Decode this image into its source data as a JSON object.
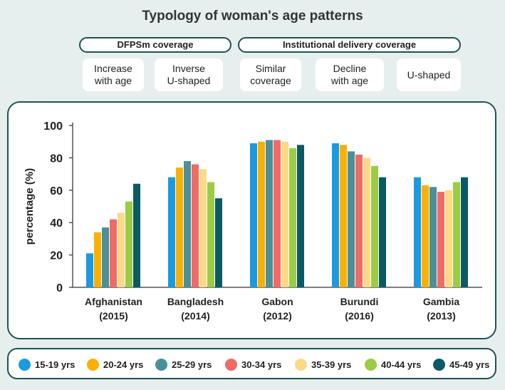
{
  "header": {
    "title": "Typology of woman's age patterns"
  },
  "groups": [
    {
      "label": "DFPSm coverage"
    },
    {
      "label": "Institutional delivery coverage"
    }
  ],
  "types": [
    {
      "label": "Increase\nwith age"
    },
    {
      "label": "Inverse\nU-shaped"
    },
    {
      "label": "Similar\ncoverage"
    },
    {
      "label": "Decline\nwith age"
    },
    {
      "label": "U-shaped"
    }
  ],
  "chart_data": {
    "type": "bar",
    "title": "",
    "xlabel": "",
    "ylabel": "percentage (%)",
    "ylim": [
      0,
      100
    ],
    "yticks": [
      0,
      20,
      40,
      60,
      80,
      100
    ],
    "grid": false,
    "legend_position": "bottom",
    "categories": [
      {
        "name": "Afghanistan",
        "year": "(2015)"
      },
      {
        "name": "Bangladesh",
        "year": "(2014)"
      },
      {
        "name": "Gabon",
        "year": "(2012)"
      },
      {
        "name": "Burundi",
        "year": "(2016)"
      },
      {
        "name": "Gambia",
        "year": "(2013)"
      }
    ],
    "series": [
      {
        "name": "15-19 yrs",
        "color": "#1b9ae0",
        "values": [
          21,
          68,
          89,
          89,
          68
        ]
      },
      {
        "name": "20-24 yrs",
        "color": "#fbb000",
        "values": [
          34,
          74,
          90,
          88,
          63
        ]
      },
      {
        "name": "25-29 yrs",
        "color": "#4a9098",
        "values": [
          37,
          78,
          91,
          84,
          62
        ]
      },
      {
        "name": "30-34 yrs",
        "color": "#f06a66",
        "values": [
          42,
          76,
          91,
          82,
          59
        ]
      },
      {
        "name": "35-39 yrs",
        "color": "#fbd98a",
        "values": [
          46,
          73,
          90,
          80,
          60
        ]
      },
      {
        "name": "40-44 yrs",
        "color": "#9ccb45",
        "values": [
          53,
          65,
          86,
          75,
          65
        ]
      },
      {
        "name": "45-49 yrs",
        "color": "#0b5a63",
        "values": [
          64,
          55,
          88,
          68,
          68
        ]
      }
    ]
  }
}
